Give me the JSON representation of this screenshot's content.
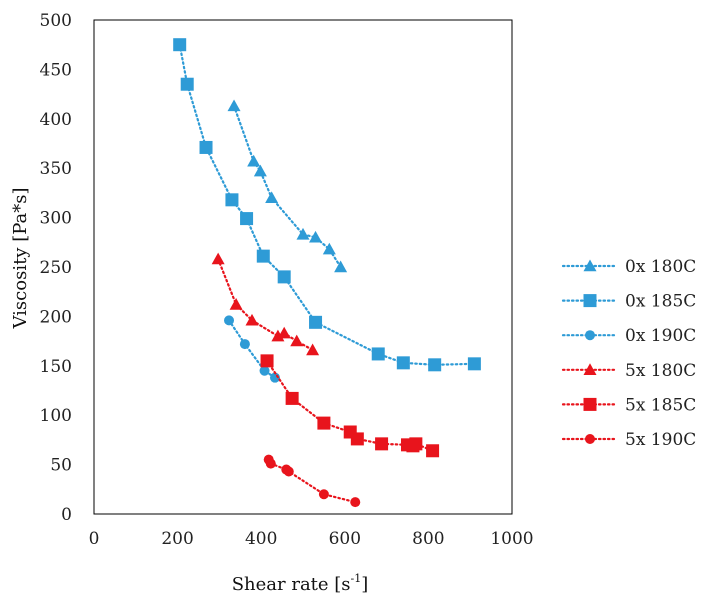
{
  "chart_data": {
    "type": "scatter",
    "title": "",
    "xlabel": "Shear rate [s",
    "xlabel_sup": "-1",
    "xlabel_end": "]",
    "ylabel": "Viscosity [Pa*s]",
    "xlim": [
      0,
      1000
    ],
    "ylim": [
      0,
      500
    ],
    "xticks": [
      0,
      200,
      400,
      600,
      800,
      1000
    ],
    "yticks": [
      0,
      50,
      100,
      150,
      200,
      250,
      300,
      350,
      400,
      450,
      500
    ],
    "grid": false,
    "legend_position": "right",
    "series": [
      {
        "name": "0x 180C",
        "color": "#2E9BD6",
        "marker": "triangle",
        "x": [
          335,
          382,
          398,
          425,
          500,
          530,
          563,
          590
        ],
        "y": [
          413,
          357,
          347,
          320,
          283,
          280,
          268,
          250
        ]
      },
      {
        "name": "0x 185C",
        "color": "#2E9BD6",
        "marker": "square",
        "x": [
          205,
          223,
          268,
          330,
          365,
          405,
          455,
          530,
          680,
          740,
          815,
          910
        ],
        "y": [
          475,
          435,
          371,
          318,
          299,
          261,
          240,
          194,
          162,
          153,
          151,
          152
        ]
      },
      {
        "name": "0x 190C",
        "color": "#2E9BD6",
        "marker": "circle",
        "x": [
          323,
          361,
          408,
          433
        ],
        "y": [
          196,
          172,
          145,
          138
        ]
      },
      {
        "name": "5x 180C",
        "color": "#E8141C",
        "marker": "triangle",
        "x": [
          297,
          340,
          378,
          440,
          455,
          485,
          523
        ],
        "y": [
          258,
          212,
          196,
          180,
          183,
          175,
          166
        ]
      },
      {
        "name": "5x 185C",
        "color": "#E8141C",
        "marker": "square",
        "x": [
          414,
          474,
          550,
          613,
          630,
          688,
          750,
          763,
          770,
          810
        ],
        "y": [
          155,
          117,
          92,
          83,
          76,
          71,
          70,
          69,
          71,
          64
        ]
      },
      {
        "name": "5x 190C",
        "color": "#E8141C",
        "marker": "circle",
        "x": [
          418,
          423,
          460,
          466,
          550,
          625
        ],
        "y": [
          55,
          51,
          45,
          43,
          20,
          12
        ]
      }
    ]
  }
}
